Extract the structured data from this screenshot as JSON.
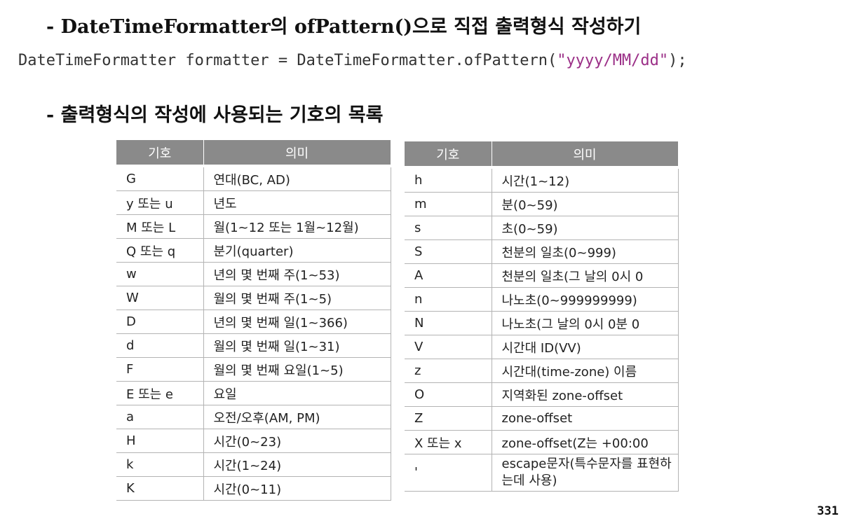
{
  "heading1": "- DateTimeFormatter의 ofPattern()으로 직접 출력형식 작성하기",
  "code": {
    "before": "DateTimeFormatter formatter = DateTimeFormatter.ofPattern(",
    "string": "\"yyyy/MM/dd\"",
    "after": ");"
  },
  "heading2": "- 출력형식의 작성에 사용되는 기호의 목록",
  "table_left": {
    "headers": [
      "기호",
      "의미"
    ],
    "rows": [
      [
        "G",
        "연대(BC, AD)"
      ],
      [
        "y 또는 u",
        "년도"
      ],
      [
        "M 또는 L",
        "월(1~12 또는 1월~12월)"
      ],
      [
        "Q 또는 q",
        "분기(quarter)"
      ],
      [
        "w",
        "년의 몇 번째 주(1~53)"
      ],
      [
        "W",
        "월의 몇 번째 주(1~5)"
      ],
      [
        "D",
        "년의 몇 번째 일(1~366)"
      ],
      [
        "d",
        "월의 몇 번째 일(1~31)"
      ],
      [
        "F",
        "월의 몇 번째 요일(1~5)"
      ],
      [
        "E 또는 e",
        "요일"
      ],
      [
        "a",
        "오전/오후(AM, PM)"
      ],
      [
        "H",
        "시간(0~23)"
      ],
      [
        "k",
        "시간(1~24)"
      ],
      [
        "K",
        "시간(0~11)"
      ]
    ]
  },
  "table_right": {
    "headers": [
      "기호",
      "의미"
    ],
    "rows": [
      [
        "h",
        "시간(1~12)"
      ],
      [
        "m",
        "분(0~59)"
      ],
      [
        "s",
        "초(0~59)"
      ],
      [
        "S",
        "천분의 일초(0~999)"
      ],
      [
        "A",
        "천분의 일초(그 날의 0시 0"
      ],
      [
        "n",
        "나노초(0~999999999)"
      ],
      [
        "N",
        "나노초(그 날의 0시 0분 0"
      ],
      [
        "V",
        "시간대 ID(VV)"
      ],
      [
        "z",
        "시간대(time-zone) 이름"
      ],
      [
        "O",
        "지역화된 zone-offset"
      ],
      [
        "Z",
        "zone-offset"
      ],
      [
        "X 또는 x",
        "zone-offset(Z는 +00:00"
      ],
      [
        "'",
        "escape문자(특수문자를 표현하는데 사용)"
      ]
    ]
  },
  "page_number": "331"
}
